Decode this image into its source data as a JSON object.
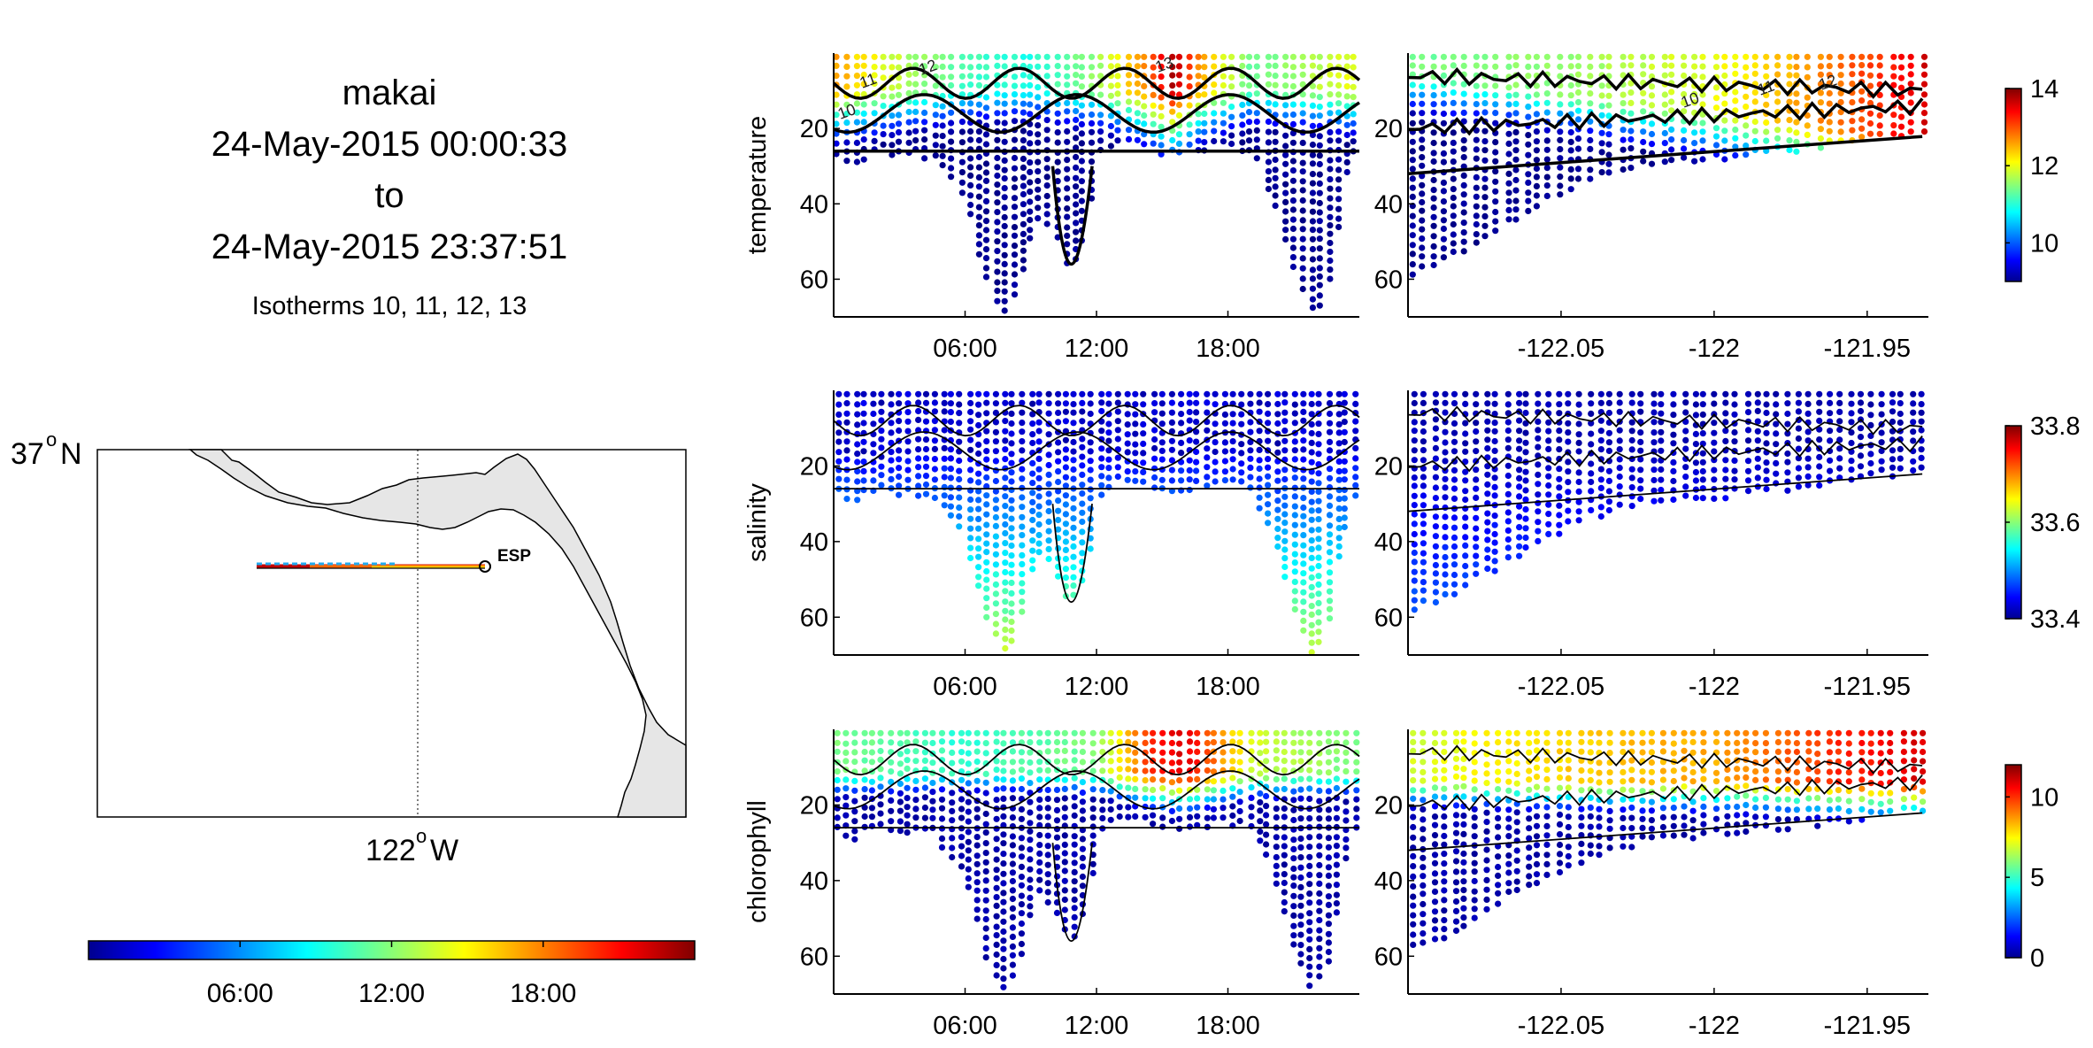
{
  "header": {
    "vehicle": "makai",
    "start": "24-May-2015 00:00:33",
    "to_word": "to",
    "end": "24-May-2015 23:37:51",
    "isotherms_note": "Isotherms 10, 11, 12, 13"
  },
  "map": {
    "lat_label": "37",
    "lat_suffix": "N",
    "lon_label": "122",
    "lon_suffix": "W",
    "degree_sign": "o",
    "station_label": "ESP",
    "land_color": "#e6e6e6"
  },
  "time_colorbar": {
    "ticks": [
      "06:00",
      "12:00",
      "18:00"
    ],
    "tick_fractions": [
      0.25,
      0.5,
      0.75
    ],
    "colormap": "jet"
  },
  "chart_data": [
    {
      "type": "scatter",
      "title": "",
      "panel": "time-section",
      "ylabel": "temperature",
      "x_ticks": [
        "06:00",
        "12:00",
        "18:00"
      ],
      "y_ticks": [
        "20",
        "40",
        "60"
      ],
      "xlim_hours": [
        0,
        24
      ],
      "ylim_depth": [
        0,
        70
      ],
      "colorbar": {
        "range": [
          9,
          14
        ],
        "ticks": [
          "10",
          "12",
          "14"
        ]
      },
      "contour_labels": [
        "10",
        "11",
        "12",
        "13"
      ],
      "trough_depths": [
        {
          "hour": 7.6,
          "max_depth": 70
        },
        {
          "hour": 10.8,
          "max_depth": 58
        },
        {
          "hour": 22.0,
          "max_depth": 70
        }
      ],
      "surface_values": {
        "hours": [
          0,
          3,
          6,
          9,
          12,
          14,
          15.5,
          17,
          19,
          21,
          23.6
        ],
        "values": [
          12.6,
          11.8,
          11.2,
          11.0,
          11.6,
          12.6,
          13.8,
          12.4,
          11.4,
          11.6,
          12.0
        ]
      },
      "colormap": "jet"
    },
    {
      "type": "scatter",
      "title": "",
      "panel": "longitude-section",
      "ylabel": "",
      "x_ticks": [
        "-122.05",
        "-122",
        "-121.95"
      ],
      "y_ticks": [
        "20",
        "40",
        "60"
      ],
      "xlim": [
        -122.1,
        -121.93
      ],
      "ylim_depth": [
        0,
        70
      ],
      "contour_labels": [
        "10",
        "11",
        "12"
      ],
      "surface_values": {
        "lon": [
          -122.1,
          -122.05,
          -122.0,
          -121.96,
          -121.93
        ],
        "values": [
          11.4,
          11.6,
          12.0,
          12.8,
          13.6
        ]
      },
      "colormap": "jet"
    },
    {
      "type": "scatter",
      "title": "",
      "panel": "time-section",
      "ylabel": "salinity",
      "x_ticks": [
        "06:00",
        "12:00",
        "18:00"
      ],
      "y_ticks": [
        "20",
        "40",
        "60"
      ],
      "xlim_hours": [
        0,
        24
      ],
      "ylim_depth": [
        0,
        70
      ],
      "colorbar": {
        "range": [
          33.4,
          33.8
        ],
        "ticks": [
          "33.4",
          "33.6",
          "33.8"
        ]
      },
      "surface_values": {
        "hours": [
          0,
          12,
          23.6
        ],
        "values": [
          33.42,
          33.42,
          33.42
        ]
      },
      "deep_values": {
        "depth": [
          20,
          40,
          60,
          70
        ],
        "values": [
          33.45,
          33.5,
          33.6,
          33.62
        ]
      },
      "colormap": "jet"
    },
    {
      "type": "scatter",
      "title": "",
      "panel": "longitude-section",
      "ylabel": "",
      "x_ticks": [
        "-122.05",
        "-122",
        "-121.95"
      ],
      "y_ticks": [
        "20",
        "40",
        "60"
      ],
      "xlim": [
        -122.1,
        -121.93
      ],
      "ylim_depth": [
        0,
        70
      ],
      "colormap": "jet"
    },
    {
      "type": "scatter",
      "title": "",
      "panel": "time-section",
      "ylabel": "chlorophyll",
      "x_ticks": [
        "06:00",
        "12:00",
        "18:00"
      ],
      "y_ticks": [
        "20",
        "40",
        "60"
      ],
      "xlim_hours": [
        0,
        24
      ],
      "ylim_depth": [
        0,
        70
      ],
      "colorbar": {
        "range": [
          0,
          12
        ],
        "ticks": [
          "0",
          "5",
          "10"
        ]
      },
      "surface_values": {
        "hours": [
          0,
          6,
          12,
          14.5,
          16,
          19,
          23.6
        ],
        "values": [
          6,
          5,
          6,
          10,
          11,
          7,
          6
        ]
      },
      "colormap": "jet"
    },
    {
      "type": "scatter",
      "title": "",
      "panel": "longitude-section",
      "ylabel": "",
      "x_ticks": [
        "-122.05",
        "-122",
        "-121.95"
      ],
      "y_ticks": [
        "20",
        "40",
        "60"
      ],
      "xlim": [
        -122.1,
        -121.93
      ],
      "ylim_depth": [
        0,
        70
      ],
      "surface_values": {
        "lon": [
          -122.1,
          -122.05,
          -122.0,
          -121.96,
          -121.93
        ],
        "values": [
          7,
          8,
          8.5,
          10,
          11
        ]
      },
      "colormap": "jet"
    }
  ]
}
